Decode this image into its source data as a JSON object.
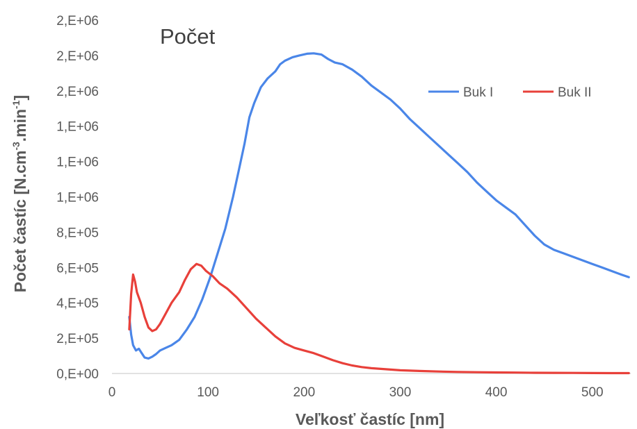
{
  "chart_data": {
    "type": "line",
    "title": "",
    "annotation": "Počet",
    "xlabel": "Veľkosť častíc [nm]",
    "ylabel_main": "Počet častíc [N.cm",
    "ylabel_sup1": "-3",
    "ylabel_mid": ".min",
    "ylabel_sup2": "-1",
    "ylabel_end": "]",
    "xlim": [
      0,
      540
    ],
    "ylim": [
      0,
      2000000
    ],
    "x_ticks": [
      0,
      100,
      200,
      300,
      400,
      500
    ],
    "x_tick_labels": [
      "0",
      "100",
      "200",
      "300",
      "400",
      "500"
    ],
    "y_ticks": [
      0,
      200000,
      400000,
      600000,
      800000,
      1000000,
      1200000,
      1400000,
      1600000,
      1800000,
      2000000
    ],
    "y_tick_labels": [
      "0,E+00",
      "2,E+05",
      "4,E+05",
      "6,E+05",
      "8,E+05",
      "1,E+06",
      "1,E+06",
      "1,E+06",
      "2,E+06",
      "2,E+06",
      "2,E+06"
    ],
    "grid": false,
    "legend_position": "top-right",
    "series": [
      {
        "name": "Buk I",
        "color": "#4a86e8",
        "points": [
          [
            18,
            320000
          ],
          [
            20,
            220000
          ],
          [
            22,
            160000
          ],
          [
            25,
            130000
          ],
          [
            28,
            140000
          ],
          [
            31,
            115000
          ],
          [
            34,
            90000
          ],
          [
            38,
            85000
          ],
          [
            42,
            95000
          ],
          [
            46,
            110000
          ],
          [
            50,
            130000
          ],
          [
            56,
            145000
          ],
          [
            62,
            160000
          ],
          [
            70,
            190000
          ],
          [
            78,
            250000
          ],
          [
            86,
            320000
          ],
          [
            94,
            420000
          ],
          [
            102,
            540000
          ],
          [
            110,
            680000
          ],
          [
            118,
            820000
          ],
          [
            126,
            1000000
          ],
          [
            132,
            1150000
          ],
          [
            138,
            1300000
          ],
          [
            143,
            1450000
          ],
          [
            148,
            1530000
          ],
          [
            155,
            1620000
          ],
          [
            162,
            1670000
          ],
          [
            170,
            1710000
          ],
          [
            175,
            1750000
          ],
          [
            180,
            1770000
          ],
          [
            188,
            1790000
          ],
          [
            195,
            1800000
          ],
          [
            203,
            1810000
          ],
          [
            210,
            1812000
          ],
          [
            218,
            1805000
          ],
          [
            225,
            1780000
          ],
          [
            232,
            1760000
          ],
          [
            240,
            1750000
          ],
          [
            250,
            1720000
          ],
          [
            260,
            1680000
          ],
          [
            270,
            1630000
          ],
          [
            280,
            1590000
          ],
          [
            290,
            1550000
          ],
          [
            300,
            1500000
          ],
          [
            310,
            1440000
          ],
          [
            320,
            1390000
          ],
          [
            330,
            1340000
          ],
          [
            340,
            1290000
          ],
          [
            350,
            1240000
          ],
          [
            360,
            1190000
          ],
          [
            370,
            1140000
          ],
          [
            380,
            1080000
          ],
          [
            390,
            1030000
          ],
          [
            400,
            980000
          ],
          [
            410,
            940000
          ],
          [
            420,
            900000
          ],
          [
            430,
            840000
          ],
          [
            440,
            780000
          ],
          [
            450,
            730000
          ],
          [
            460,
            700000
          ],
          [
            470,
            680000
          ],
          [
            480,
            660000
          ],
          [
            490,
            640000
          ],
          [
            500,
            620000
          ],
          [
            510,
            600000
          ],
          [
            520,
            580000
          ],
          [
            530,
            560000
          ],
          [
            538,
            545000
          ]
        ]
      },
      {
        "name": "Buk II",
        "color": "#e8403a",
        "points": [
          [
            18,
            250000
          ],
          [
            20,
            450000
          ],
          [
            22,
            560000
          ],
          [
            24,
            520000
          ],
          [
            26,
            460000
          ],
          [
            30,
            400000
          ],
          [
            34,
            320000
          ],
          [
            38,
            260000
          ],
          [
            42,
            240000
          ],
          [
            46,
            250000
          ],
          [
            50,
            280000
          ],
          [
            56,
            340000
          ],
          [
            62,
            400000
          ],
          [
            70,
            460000
          ],
          [
            76,
            530000
          ],
          [
            82,
            590000
          ],
          [
            88,
            620000
          ],
          [
            93,
            610000
          ],
          [
            98,
            580000
          ],
          [
            105,
            550000
          ],
          [
            112,
            510000
          ],
          [
            120,
            480000
          ],
          [
            130,
            430000
          ],
          [
            140,
            370000
          ],
          [
            150,
            310000
          ],
          [
            160,
            260000
          ],
          [
            170,
            210000
          ],
          [
            180,
            170000
          ],
          [
            190,
            145000
          ],
          [
            200,
            130000
          ],
          [
            210,
            115000
          ],
          [
            220,
            95000
          ],
          [
            230,
            75000
          ],
          [
            240,
            58000
          ],
          [
            250,
            45000
          ],
          [
            260,
            36000
          ],
          [
            270,
            30000
          ],
          [
            280,
            26000
          ],
          [
            290,
            22000
          ],
          [
            300,
            18000
          ],
          [
            320,
            14000
          ],
          [
            340,
            11000
          ],
          [
            360,
            8500
          ],
          [
            380,
            7000
          ],
          [
            400,
            6000
          ],
          [
            420,
            5000
          ],
          [
            440,
            4000
          ],
          [
            460,
            3500
          ],
          [
            480,
            3000
          ],
          [
            500,
            2500
          ],
          [
            520,
            2000
          ],
          [
            538,
            1800
          ]
        ]
      }
    ]
  }
}
